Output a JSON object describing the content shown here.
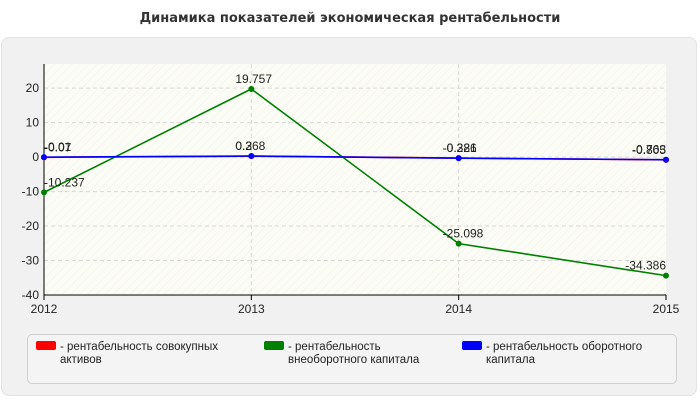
{
  "title": "Динамика показателей экономическая рентабельности",
  "chart_data": {
    "type": "line",
    "title": "Динамика показателей экономическая рентабельности",
    "categories": [
      "2012",
      "2013",
      "2014",
      "2015"
    ],
    "ylim": [
      -40,
      27
    ],
    "yticks": [
      20,
      10,
      0,
      -10,
      -20,
      -30,
      -40
    ],
    "ytick_labels": [
      "20",
      "10",
      "0",
      "-10",
      "-20",
      "-30",
      "-40"
    ],
    "grid": true,
    "legend_position": "bottom",
    "series": [
      {
        "name": "рентабельность совокупных активов",
        "color": "#ff0000",
        "values": [
          -0.07,
          0.268,
          -0.281,
          -0.805
        ],
        "labels": [
          "-0.07",
          "0.268",
          "-0.281",
          "-0.805"
        ]
      },
      {
        "name": "рентабельность внеоборотного капитала",
        "color": "#008000",
        "values": [
          -10.237,
          19.757,
          -25.098,
          -34.386
        ],
        "labels": [
          "-10.237",
          "19.757",
          "-25.098",
          "-34.386"
        ]
      },
      {
        "name": "рентабельность оборотного капитала",
        "color": "#0000ff",
        "values": [
          -0.01,
          0.3,
          -0.326,
          -0.763
        ],
        "labels": [
          "-0.01",
          "0.3",
          "-0.326",
          "-0.763"
        ]
      }
    ]
  }
}
